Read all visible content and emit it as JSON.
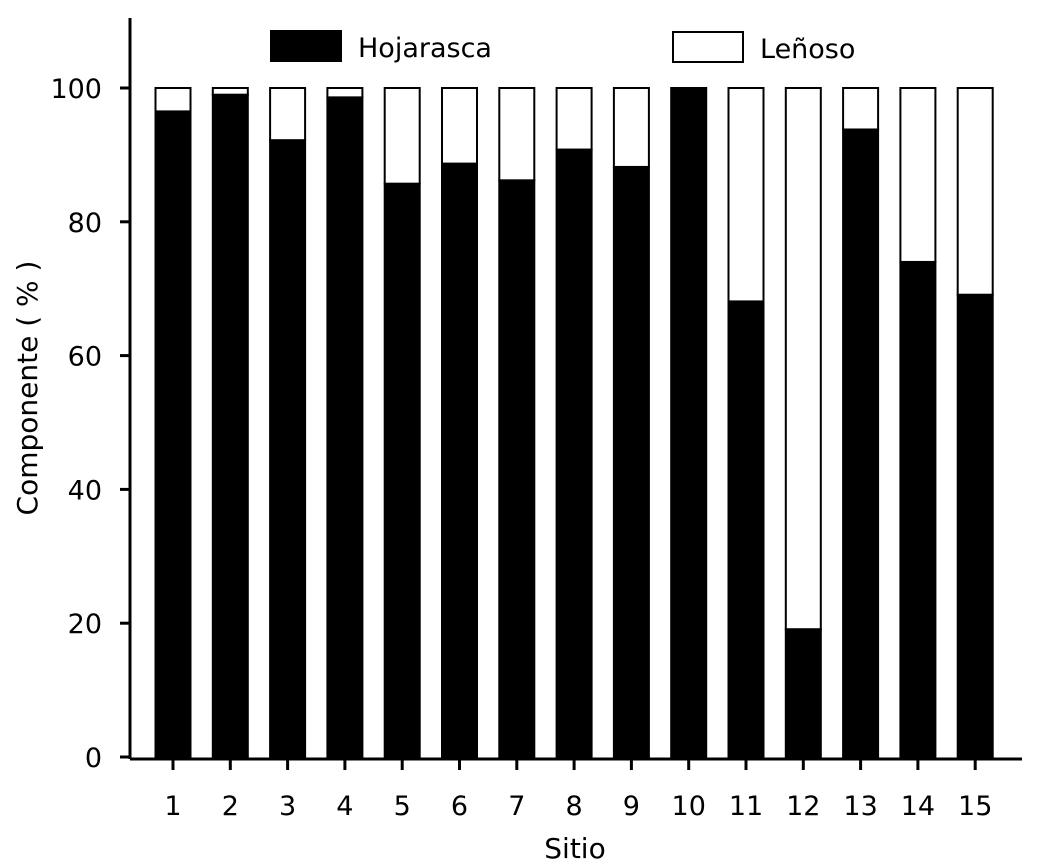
{
  "chart_data": {
    "type": "bar",
    "stacked": true,
    "categories": [
      "1",
      "2",
      "3",
      "4",
      "5",
      "6",
      "7",
      "8",
      "9",
      "10",
      "11",
      "12",
      "13",
      "14",
      "15"
    ],
    "series": [
      {
        "name": "Hojarasca",
        "color": "#000000",
        "values": [
          96.5,
          99.0,
          92.2,
          98.6,
          85.7,
          88.7,
          86.2,
          90.8,
          88.2,
          100.0,
          68.1,
          19.1,
          93.8,
          74.0,
          69.1
        ]
      },
      {
        "name": "Leñoso",
        "color": "#ffffff",
        "values": [
          3.5,
          1.0,
          7.8,
          1.4,
          14.3,
          11.3,
          13.8,
          9.2,
          11.8,
          0.0,
          31.9,
          80.9,
          6.2,
          26.0,
          30.9
        ]
      }
    ],
    "title": "",
    "xlabel": "Sitio",
    "ylabel": "Componente ( % )",
    "ylim": [
      0,
      110
    ],
    "yticks": [
      0,
      20,
      40,
      60,
      80,
      100
    ],
    "grid": false,
    "legend_position": "top"
  }
}
